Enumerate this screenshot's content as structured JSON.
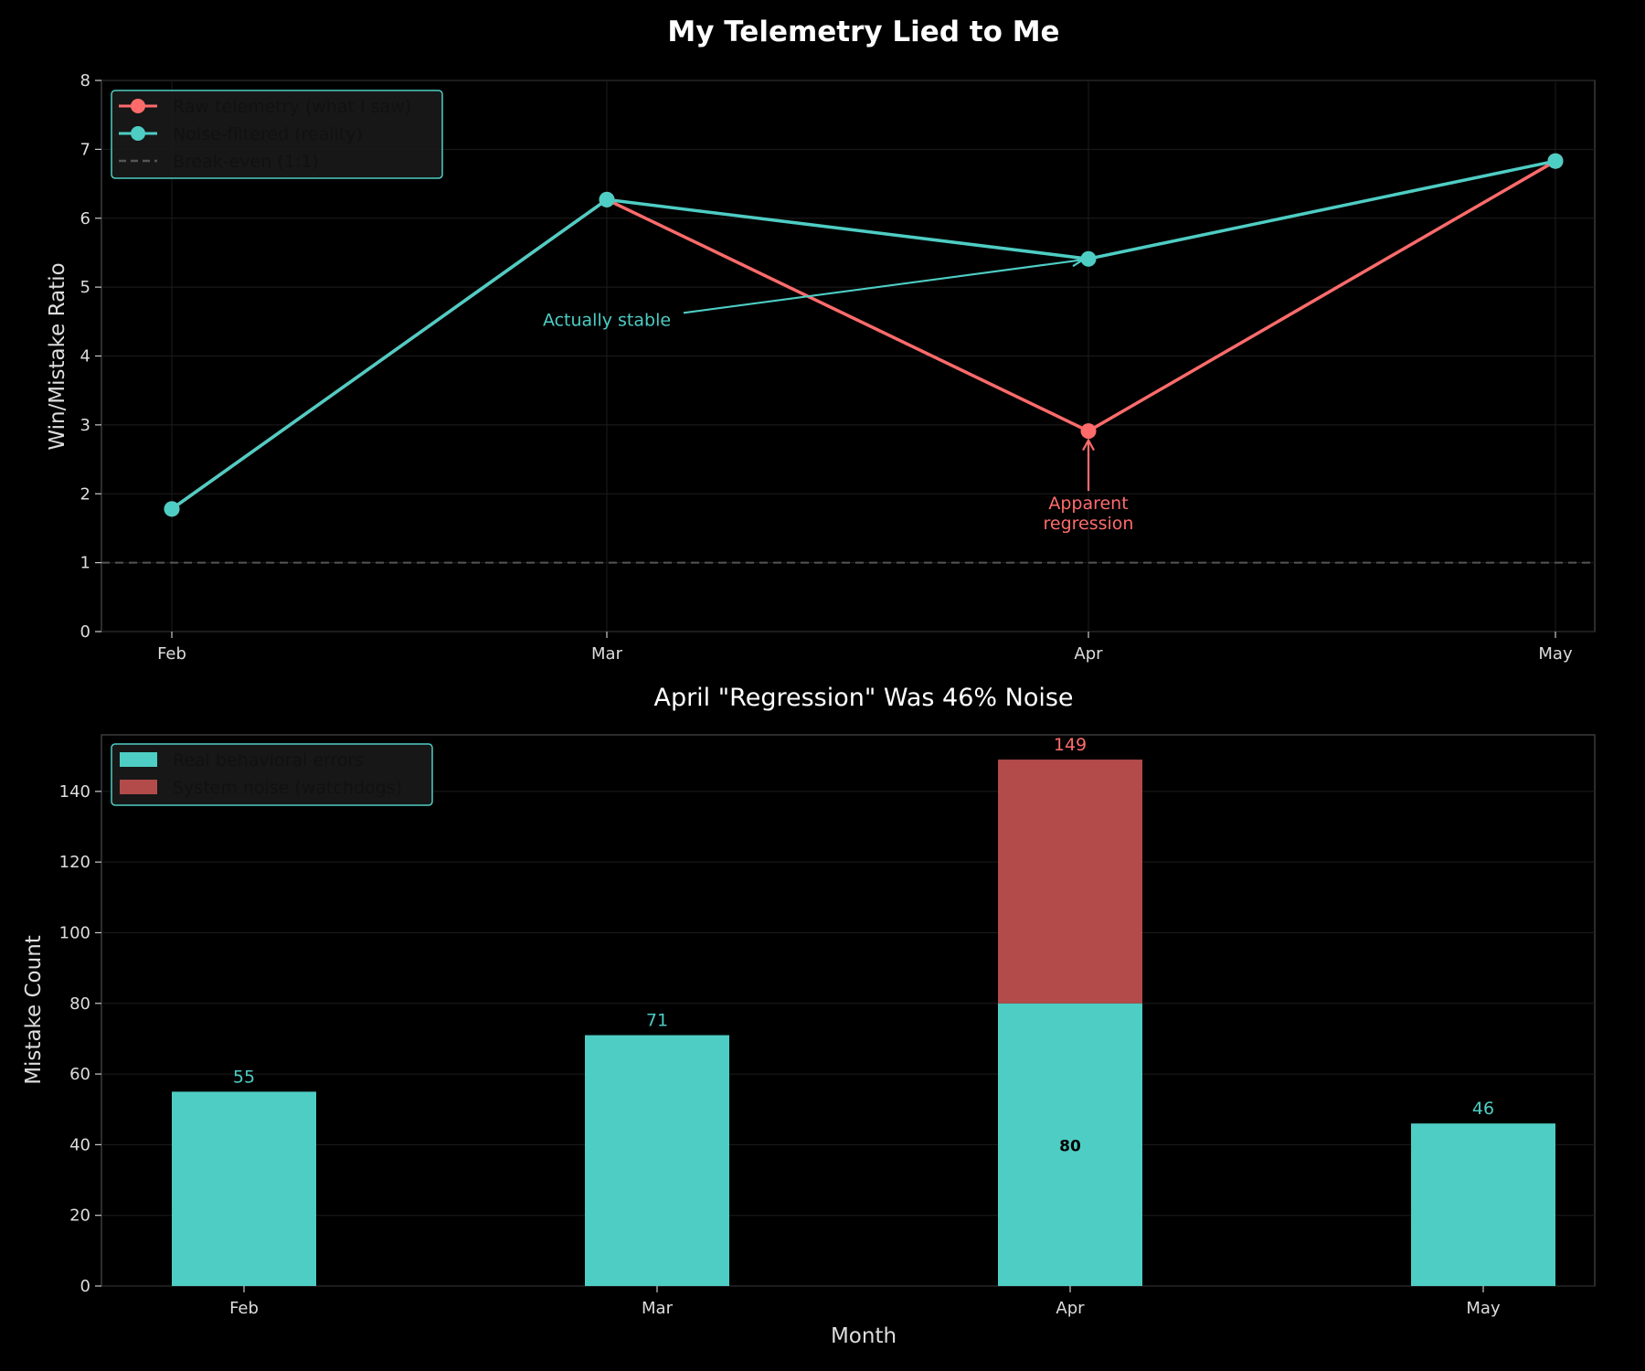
{
  "figure": {
    "title": "My Telemetry Lied to Me",
    "background": "#000000"
  },
  "chart_data": [
    {
      "type": "line",
      "title": "",
      "xlabel": "",
      "ylabel": "Win/Mistake Ratio",
      "categories": [
        "Feb",
        "Mar",
        "Apr",
        "May"
      ],
      "ylim": [
        0,
        8
      ],
      "yticks": [
        0,
        1,
        2,
        3,
        4,
        5,
        6,
        7,
        8
      ],
      "grid": true,
      "legend_position": "top-left",
      "series": [
        {
          "name": "Raw telemetry (what I saw)",
          "values": [
            1.78,
            6.27,
            2.91,
            6.83
          ],
          "color": "#ff6b6b",
          "style": "solid-markers"
        },
        {
          "name": "Noise-filtered (reality)",
          "values": [
            1.78,
            6.27,
            5.41,
            6.83
          ],
          "color": "#4ecdc4",
          "style": "solid-markers"
        },
        {
          "name": "Break-even (1:1)",
          "values": [
            1,
            1,
            1,
            1
          ],
          "color": "#555555",
          "style": "dashed"
        }
      ],
      "annotations": [
        {
          "text": "Actually stable",
          "category": "Apr",
          "y": 5.41,
          "label_category": "Mar",
          "label_y": 4.52,
          "color": "#4ecdc4"
        },
        {
          "text": "Apparent\nregression",
          "category": "Apr",
          "y": 2.91,
          "label_category": "Apr",
          "label_y": 1.75,
          "color": "#ff6b6b"
        }
      ]
    },
    {
      "type": "bar",
      "title": "April \"Regression\" Was 46% Noise",
      "xlabel": "Month",
      "ylabel": "Mistake Count",
      "categories": [
        "Feb",
        "Mar",
        "Apr",
        "May"
      ],
      "ylim": [
        0,
        156
      ],
      "yticks": [
        0,
        20,
        40,
        60,
        80,
        100,
        120,
        140
      ],
      "grid": true,
      "stacked": true,
      "legend_position": "top-left",
      "series": [
        {
          "name": "Real behavioral errors",
          "values": [
            55,
            71,
            80,
            46
          ],
          "color": "#4ecdc4"
        },
        {
          "name": "System noise (watchdogs)",
          "values": [
            0,
            0,
            69,
            0
          ],
          "color": "#b34b4b"
        }
      ],
      "totals": [
        55,
        71,
        149,
        46
      ],
      "total_label_colors": [
        "#4ecdc4",
        "#4ecdc4",
        "#ff6b6b",
        "#4ecdc4"
      ],
      "inner_labels": [
        {
          "category": "Apr",
          "text": "80"
        }
      ]
    }
  ]
}
